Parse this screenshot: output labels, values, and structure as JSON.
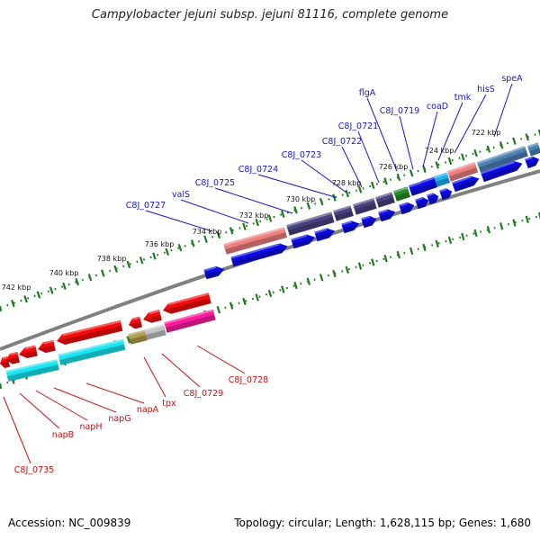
{
  "title": "Campylobacter jejuni subsp. jejuni 81116, complete genome",
  "footer": {
    "accession": "Accession: NC_009839",
    "summary": "Topology: circular; Length: 1,628,115 bp; Genes: 1,680"
  },
  "colors": {
    "forward_label": "#1515c8",
    "reverse_label": "#c80f0f",
    "tick": "#1e7a1e",
    "backbone": "#808080",
    "gene_blue": "#0a0ae6",
    "gene_red": "#f50a0a",
    "gene_cyan": "#19e6f0",
    "gene_pink": "#ff1aa0",
    "gene_olive": "#b4a050",
    "gene_silver": "#c4c4c8",
    "rna_salmon": "#f08080",
    "rna_slate": "#4a4280",
    "rna_steel": "#4a82b4",
    "rna_green": "#288c28"
  },
  "scale_ticks": [
    {
      "label": "722 kbp",
      "side": "outer"
    },
    {
      "label": "724 kbp",
      "side": "outer"
    },
    {
      "label": "726 kbp",
      "side": "outer"
    },
    {
      "label": "728 kbp",
      "side": "outer"
    },
    {
      "label": "730 kbp",
      "side": "outer"
    },
    {
      "label": "732 kbp",
      "side": "outer"
    },
    {
      "label": "734 kbp",
      "side": "outer"
    },
    {
      "label": "736 kbp",
      "side": "outer"
    },
    {
      "label": "738 kbp",
      "side": "outer"
    },
    {
      "label": "740 kbp",
      "side": "outer"
    },
    {
      "label": "742 kbp",
      "side": "outer"
    }
  ],
  "forward_gene_labels": [
    "speA",
    "hisS",
    "tmk",
    "coaD",
    "C8J_0719",
    "flgA",
    "C8J_0721",
    "C8J_0722",
    "C8J_0723",
    "C8J_0724",
    "C8J_0725",
    "valS",
    "C8J_0727"
  ],
  "reverse_gene_labels": [
    "C8J_0728",
    "C8J_0729",
    "tpx",
    "napA",
    "napG",
    "napH",
    "napB",
    "C8J_0735"
  ]
}
